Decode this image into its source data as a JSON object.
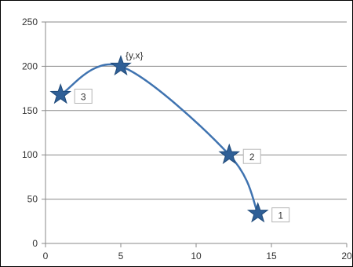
{
  "chart_data": {
    "type": "scatter",
    "title": "",
    "xlabel": "",
    "ylabel": "",
    "xlim": [
      0,
      20
    ],
    "ylim": [
      0,
      250
    ],
    "x_ticks": [
      0,
      5,
      10,
      15,
      20
    ],
    "y_ticks": [
      0,
      50,
      100,
      150,
      200,
      250
    ],
    "x_tick_labels": [
      "0",
      "5",
      "10",
      "15",
      "20"
    ],
    "y_tick_labels": [
      "0",
      "50",
      "100",
      "150",
      "200",
      "250"
    ],
    "grid": "horizontal",
    "legend": "none",
    "marker": "star",
    "line": "smooth",
    "colors": {
      "line": "#3f73b0",
      "marker": "#2f5f96",
      "grid": "#8a8a8a"
    },
    "points": [
      {
        "x": 1,
        "y": 168,
        "label": "3"
      },
      {
        "x": 5,
        "y": 200,
        "label": "{y,x}"
      },
      {
        "x": 12.2,
        "y": 100,
        "label": "2"
      },
      {
        "x": 14.1,
        "y": 34,
        "label": "1"
      }
    ]
  }
}
